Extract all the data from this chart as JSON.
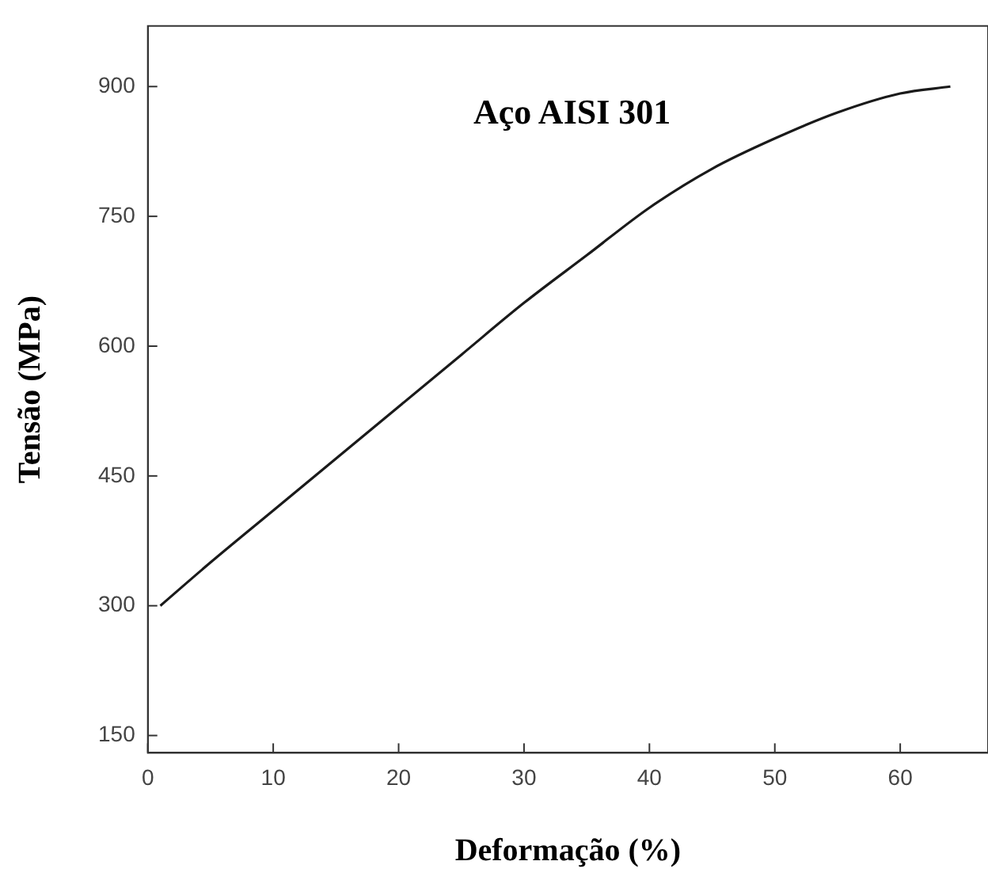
{
  "chart_data": {
    "type": "line",
    "xlabel": "Deformação (%)",
    "ylabel": "Tensão (MPa)",
    "annotations": [
      "Aço AISI 301"
    ],
    "x": [
      1,
      5,
      10,
      15,
      20,
      25,
      30,
      35,
      40,
      45,
      50,
      55,
      60,
      64
    ],
    "series": [
      {
        "color": "#1a1a1a",
        "values": [
          300,
          350,
          410,
          470,
          530,
          590,
          650,
          705,
          760,
          805,
          840,
          870,
          892,
          900
        ]
      }
    ],
    "xlim": [
      0,
      67
    ],
    "xticks": [
      0,
      10,
      20,
      30,
      40,
      50,
      60
    ],
    "ylim": [
      130,
      970
    ],
    "yticks": [
      150,
      300,
      450,
      600,
      750,
      900
    ],
    "grid": false,
    "legend": false,
    "marker": "none",
    "line_style": "solid"
  }
}
